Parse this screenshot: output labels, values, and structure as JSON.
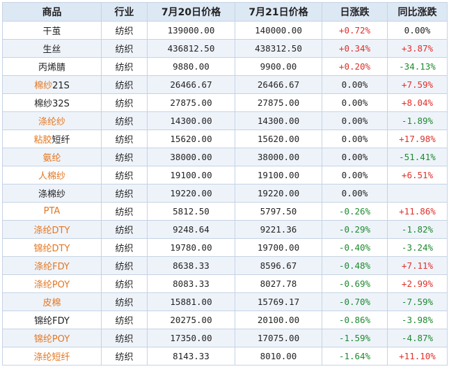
{
  "table": {
    "headers": [
      "商品",
      "行业",
      "7月20日价格",
      "7月21日价格",
      "日涨跌",
      "同比涨跌"
    ],
    "rows": [
      {
        "product": [
          {
            "t": "干茧",
            "link": false
          }
        ],
        "industry": "纺织",
        "price_0720": "139000.00",
        "price_0721": "140000.00",
        "daily": "+0.72%",
        "daily_dir": "up",
        "yoy": "0.00%",
        "yoy_dir": "flat"
      },
      {
        "product": [
          {
            "t": "生丝",
            "link": false
          }
        ],
        "industry": "纺织",
        "price_0720": "436812.50",
        "price_0721": "438312.50",
        "daily": "+0.34%",
        "daily_dir": "up",
        "yoy": "+3.87%",
        "yoy_dir": "up"
      },
      {
        "product": [
          {
            "t": "丙烯腈",
            "link": false
          }
        ],
        "industry": "纺织",
        "price_0720": "9880.00",
        "price_0721": "9900.00",
        "daily": "+0.20%",
        "daily_dir": "up",
        "yoy": "-34.13%",
        "yoy_dir": "down"
      },
      {
        "product": [
          {
            "t": "棉纱",
            "link": true
          },
          {
            "t": "21S",
            "link": false
          }
        ],
        "industry": "纺织",
        "price_0720": "26466.67",
        "price_0721": "26466.67",
        "daily": "0.00%",
        "daily_dir": "flat",
        "yoy": "+7.59%",
        "yoy_dir": "up"
      },
      {
        "product": [
          {
            "t": "棉纱32S",
            "link": false
          }
        ],
        "industry": "纺织",
        "price_0720": "27875.00",
        "price_0721": "27875.00",
        "daily": "0.00%",
        "daily_dir": "flat",
        "yoy": "+8.04%",
        "yoy_dir": "up"
      },
      {
        "product": [
          {
            "t": "涤纶纱",
            "link": true
          }
        ],
        "industry": "纺织",
        "price_0720": "14300.00",
        "price_0721": "14300.00",
        "daily": "0.00%",
        "daily_dir": "flat",
        "yoy": "-1.89%",
        "yoy_dir": "down"
      },
      {
        "product": [
          {
            "t": "粘胶",
            "link": true
          },
          {
            "t": "短纤",
            "link": false
          }
        ],
        "industry": "纺织",
        "price_0720": "15620.00",
        "price_0721": "15620.00",
        "daily": "0.00%",
        "daily_dir": "flat",
        "yoy": "+17.98%",
        "yoy_dir": "up"
      },
      {
        "product": [
          {
            "t": "氨纶",
            "link": true
          }
        ],
        "industry": "纺织",
        "price_0720": "38000.00",
        "price_0721": "38000.00",
        "daily": "0.00%",
        "daily_dir": "flat",
        "yoy": "-51.41%",
        "yoy_dir": "down"
      },
      {
        "product": [
          {
            "t": "人棉纱",
            "link": true
          }
        ],
        "industry": "纺织",
        "price_0720": "19100.00",
        "price_0721": "19100.00",
        "daily": "0.00%",
        "daily_dir": "flat",
        "yoy": "+6.51%",
        "yoy_dir": "up"
      },
      {
        "product": [
          {
            "t": "涤棉纱",
            "link": false
          }
        ],
        "industry": "纺织",
        "price_0720": "19220.00",
        "price_0721": "19220.00",
        "daily": "0.00%",
        "daily_dir": "flat",
        "yoy": "",
        "yoy_dir": "flat"
      },
      {
        "product": [
          {
            "t": "PTA",
            "link": true
          }
        ],
        "industry": "纺织",
        "price_0720": "5812.50",
        "price_0721": "5797.50",
        "daily": "-0.26%",
        "daily_dir": "down",
        "yoy": "+11.86%",
        "yoy_dir": "up"
      },
      {
        "product": [
          {
            "t": "涤纶DTY",
            "link": true
          }
        ],
        "industry": "纺织",
        "price_0720": "9248.64",
        "price_0721": "9221.36",
        "daily": "-0.29%",
        "daily_dir": "down",
        "yoy": "-1.82%",
        "yoy_dir": "down"
      },
      {
        "product": [
          {
            "t": "锦纶DTY",
            "link": true
          }
        ],
        "industry": "纺织",
        "price_0720": "19780.00",
        "price_0721": "19700.00",
        "daily": "-0.40%",
        "daily_dir": "down",
        "yoy": "-3.24%",
        "yoy_dir": "down"
      },
      {
        "product": [
          {
            "t": "涤纶FDY",
            "link": true
          }
        ],
        "industry": "纺织",
        "price_0720": "8638.33",
        "price_0721": "8596.67",
        "daily": "-0.48%",
        "daily_dir": "down",
        "yoy": "+7.11%",
        "yoy_dir": "up"
      },
      {
        "product": [
          {
            "t": "涤纶POY",
            "link": true
          }
        ],
        "industry": "纺织",
        "price_0720": "8083.33",
        "price_0721": "8027.78",
        "daily": "-0.69%",
        "daily_dir": "down",
        "yoy": "+2.99%",
        "yoy_dir": "up"
      },
      {
        "product": [
          {
            "t": "皮棉",
            "link": true
          }
        ],
        "industry": "纺织",
        "price_0720": "15881.00",
        "price_0721": "15769.17",
        "daily": "-0.70%",
        "daily_dir": "down",
        "yoy": "-7.59%",
        "yoy_dir": "down"
      },
      {
        "product": [
          {
            "t": "锦纶FDY",
            "link": false
          }
        ],
        "industry": "纺织",
        "price_0720": "20275.00",
        "price_0721": "20100.00",
        "daily": "-0.86%",
        "daily_dir": "down",
        "yoy": "-3.98%",
        "yoy_dir": "down"
      },
      {
        "product": [
          {
            "t": "锦纶POY",
            "link": true
          }
        ],
        "industry": "纺织",
        "price_0720": "17350.00",
        "price_0721": "17075.00",
        "daily": "-1.59%",
        "daily_dir": "down",
        "yoy": "-4.87%",
        "yoy_dir": "down"
      },
      {
        "product": [
          {
            "t": "涤纶短纤",
            "link": true
          }
        ],
        "industry": "纺织",
        "price_0720": "8143.33",
        "price_0721": "8010.00",
        "daily": "-1.64%",
        "daily_dir": "down",
        "yoy": "+11.10%",
        "yoy_dir": "up"
      }
    ]
  },
  "colors": {
    "up": "#e0302a",
    "down": "#1e8a2f",
    "link": "#e5761e",
    "header_bg": "#dde8f5",
    "border": "#c5d3e3"
  }
}
